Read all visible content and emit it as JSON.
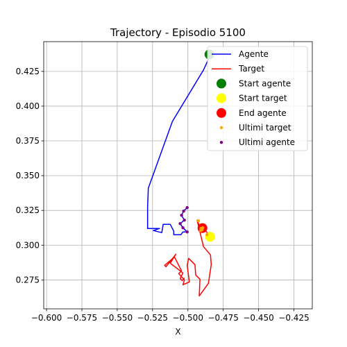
{
  "chart_data": {
    "type": "line",
    "title": "Trajectory - Episodio 5100",
    "xlabel": "X",
    "ylabel": "",
    "xlim": [
      -0.602,
      -0.412
    ],
    "ylim": [
      0.2542,
      0.4464
    ],
    "xticks": [
      -0.6,
      -0.575,
      -0.55,
      -0.525,
      -0.5,
      -0.475,
      -0.45,
      -0.425
    ],
    "xtick_labels": [
      "−0.600",
      "−0.575",
      "−0.550",
      "−0.525",
      "−0.500",
      "−0.475",
      "−0.450",
      "−0.425"
    ],
    "yticks": [
      0.275,
      0.3,
      0.325,
      0.35,
      0.375,
      0.4,
      0.425
    ],
    "ytick_labels": [
      "0.275",
      "0.300",
      "0.325",
      "0.350",
      "0.375",
      "0.400",
      "0.425"
    ],
    "grid": true,
    "legend_position": "top-right",
    "colors": {
      "agente": "#0000ff",
      "target": "#ff0000",
      "start_agente": "#008000",
      "start_target": "#ffff00",
      "end_agente": "#ff0000",
      "ultimi_target": "#ffa500",
      "ultimi_agente": "#800080",
      "grid": "#b0b0b0"
    },
    "series": [
      {
        "name": "Agente",
        "kind": "line",
        "x": [
          -0.484,
          -0.489,
          -0.511,
          -0.528,
          -0.5285,
          -0.5285,
          -0.52,
          -0.5245,
          -0.5185,
          -0.5175,
          -0.5125,
          -0.51,
          -0.51,
          -0.505,
          -0.5035,
          -0.5005,
          -0.5035,
          -0.5055,
          -0.5025,
          -0.5045,
          -0.503,
          -0.5005
        ],
        "y": [
          0.437,
          0.426,
          0.389,
          0.341,
          0.3275,
          0.312,
          0.312,
          0.3105,
          0.309,
          0.315,
          0.315,
          0.31,
          0.3075,
          0.3075,
          0.3095,
          0.3095,
          0.3125,
          0.3155,
          0.318,
          0.3215,
          0.3245,
          0.327
        ]
      },
      {
        "name": "Target",
        "kind": "line",
        "x": [
          -0.484,
          -0.488,
          -0.4905,
          -0.4885,
          -0.4905,
          -0.4935,
          -0.489,
          -0.484,
          -0.4835,
          -0.4855,
          -0.492,
          -0.4915,
          -0.4945,
          -0.495,
          -0.4995,
          -0.5005,
          -0.499,
          -0.5035,
          -0.5025,
          -0.5065,
          -0.5045,
          -0.5095,
          -0.5165,
          -0.5155,
          -0.5085,
          -0.5125,
          -0.5035,
          -0.5055,
          -0.504,
          -0.5025
        ],
        "y": [
          0.306,
          0.311,
          0.3125,
          0.312,
          0.3105,
          0.318,
          0.299,
          0.293,
          0.286,
          0.2725,
          0.2635,
          0.2755,
          0.2785,
          0.286,
          0.2905,
          0.2855,
          0.2735,
          0.2715,
          0.275,
          0.2795,
          0.2815,
          0.2915,
          0.2855,
          0.2845,
          0.2935,
          0.287,
          0.28,
          0.276,
          0.2745,
          0.2765
        ]
      },
      {
        "name": "Start agente",
        "kind": "marker",
        "x": [
          -0.4848
        ],
        "y": [
          0.4372
        ]
      },
      {
        "name": "Start target",
        "kind": "marker",
        "x": [
          -0.4843
        ],
        "y": [
          0.306
        ]
      },
      {
        "name": "End agente",
        "kind": "marker",
        "x": [
          -0.4897
        ],
        "y": [
          0.3123
        ]
      },
      {
        "name": "Ultimi target",
        "kind": "scatter",
        "x": [
          -0.4865,
          -0.49,
          -0.4895,
          -0.4908,
          -0.491,
          -0.4925
        ],
        "y": [
          0.3075,
          0.311,
          0.3125,
          0.312,
          0.3105,
          0.3175
        ]
      },
      {
        "name": "Ultimi agente",
        "kind": "scatter",
        "x": [
          -0.5005,
          -0.503,
          -0.5045,
          -0.5025,
          -0.5055,
          -0.5035,
          -0.5005
        ],
        "y": [
          0.327,
          0.3245,
          0.3215,
          0.318,
          0.3155,
          0.3125,
          0.3095
        ]
      }
    ]
  }
}
